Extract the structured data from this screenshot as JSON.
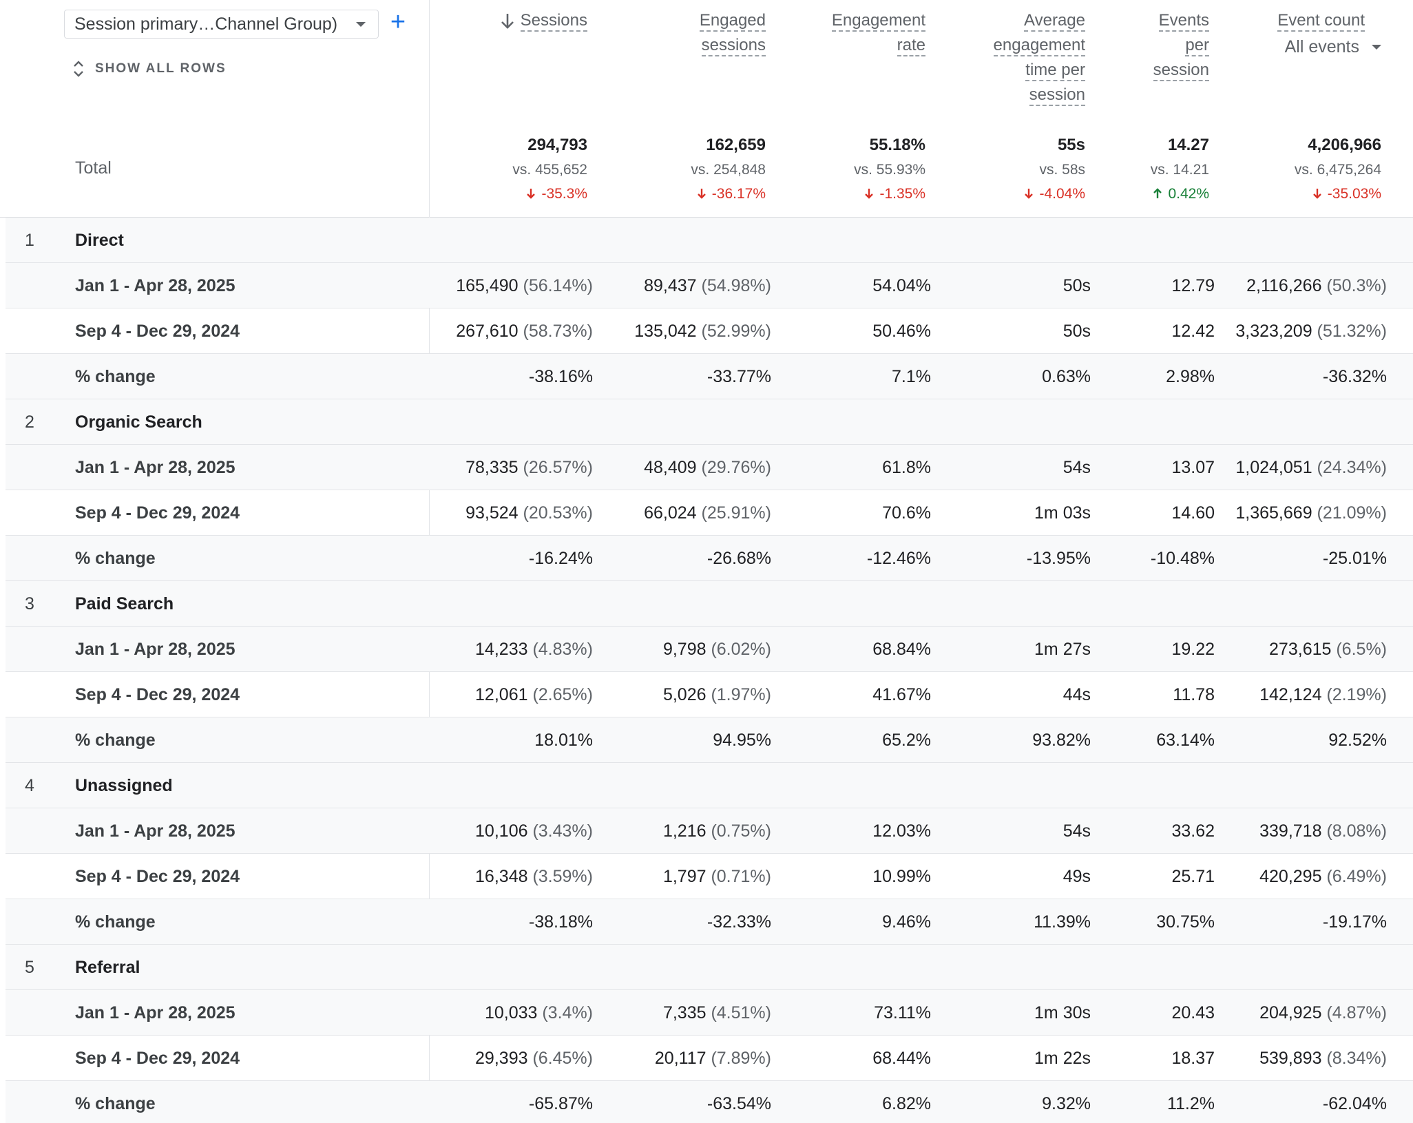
{
  "dimension_selector": {
    "value": "Session primary…Channel Group)"
  },
  "show_all_rows": "SHOW ALL ROWS",
  "columns": [
    {
      "key": "sessions",
      "lines": [
        "Sessions"
      ],
      "sorted": true
    },
    {
      "key": "engaged",
      "lines": [
        "Engaged",
        "sessions"
      ]
    },
    {
      "key": "rate",
      "lines": [
        "Engagement",
        "rate"
      ]
    },
    {
      "key": "avg",
      "lines": [
        "Average",
        "engagement",
        "time per",
        "session"
      ]
    },
    {
      "key": "eps",
      "lines": [
        "Events",
        "per",
        "session"
      ]
    },
    {
      "key": "events",
      "lines": [
        "Event count"
      ],
      "sub": "All events"
    }
  ],
  "totals": {
    "label": "Total",
    "values": [
      {
        "v": "294,793",
        "vs": "vs. 455,652",
        "chg": "-35.3%",
        "dir": "down"
      },
      {
        "v": "162,659",
        "vs": "vs. 254,848",
        "chg": "-36.17%",
        "dir": "down"
      },
      {
        "v": "55.18%",
        "vs": "vs. 55.93%",
        "chg": "-1.35%",
        "dir": "down"
      },
      {
        "v": "55s",
        "vs": "vs. 58s",
        "chg": "-4.04%",
        "dir": "down"
      },
      {
        "v": "14.27",
        "vs": "vs. 14.21",
        "chg": "0.42%",
        "dir": "up"
      },
      {
        "v": "4,206,966",
        "vs": "vs. 6,475,264",
        "chg": "-35.03%",
        "dir": "down"
      }
    ]
  },
  "groups": [
    {
      "num": "1",
      "name": "Direct",
      "rows": [
        {
          "label": "Jan 1 - Apr 28, 2025",
          "cells": [
            [
              "165,490",
              "(56.14%)"
            ],
            [
              "89,437",
              "(54.98%)"
            ],
            [
              "54.04%"
            ],
            [
              "50s"
            ],
            [
              "12.79"
            ],
            [
              "2,116,266",
              "(50.3%)"
            ]
          ]
        },
        {
          "label": "Sep 4 - Dec 29, 2024",
          "cells": [
            [
              "267,610",
              "(58.73%)"
            ],
            [
              "135,042",
              "(52.99%)"
            ],
            [
              "50.46%"
            ],
            [
              "50s"
            ],
            [
              "12.42"
            ],
            [
              "3,323,209",
              "(51.32%)"
            ]
          ]
        },
        {
          "label": "% change",
          "cells": [
            [
              "-38.16%"
            ],
            [
              "-33.77%"
            ],
            [
              "7.1%"
            ],
            [
              "0.63%"
            ],
            [
              "2.98%"
            ],
            [
              "-36.32%"
            ]
          ]
        }
      ]
    },
    {
      "num": "2",
      "name": "Organic Search",
      "rows": [
        {
          "label": "Jan 1 - Apr 28, 2025",
          "cells": [
            [
              "78,335",
              "(26.57%)"
            ],
            [
              "48,409",
              "(29.76%)"
            ],
            [
              "61.8%"
            ],
            [
              "54s"
            ],
            [
              "13.07"
            ],
            [
              "1,024,051",
              "(24.34%)"
            ]
          ]
        },
        {
          "label": "Sep 4 - Dec 29, 2024",
          "cells": [
            [
              "93,524",
              "(20.53%)"
            ],
            [
              "66,024",
              "(25.91%)"
            ],
            [
              "70.6%"
            ],
            [
              "1m 03s"
            ],
            [
              "14.60"
            ],
            [
              "1,365,669",
              "(21.09%)"
            ]
          ]
        },
        {
          "label": "% change",
          "cells": [
            [
              "-16.24%"
            ],
            [
              "-26.68%"
            ],
            [
              "-12.46%"
            ],
            [
              "-13.95%"
            ],
            [
              "-10.48%"
            ],
            [
              "-25.01%"
            ]
          ]
        }
      ]
    },
    {
      "num": "3",
      "name": "Paid Search",
      "rows": [
        {
          "label": "Jan 1 - Apr 28, 2025",
          "cells": [
            [
              "14,233",
              "(4.83%)"
            ],
            [
              "9,798",
              "(6.02%)"
            ],
            [
              "68.84%"
            ],
            [
              "1m 27s"
            ],
            [
              "19.22"
            ],
            [
              "273,615",
              "(6.5%)"
            ]
          ]
        },
        {
          "label": "Sep 4 - Dec 29, 2024",
          "cells": [
            [
              "12,061",
              "(2.65%)"
            ],
            [
              "5,026",
              "(1.97%)"
            ],
            [
              "41.67%"
            ],
            [
              "44s"
            ],
            [
              "11.78"
            ],
            [
              "142,124",
              "(2.19%)"
            ]
          ]
        },
        {
          "label": "% change",
          "cells": [
            [
              "18.01%"
            ],
            [
              "94.95%"
            ],
            [
              "65.2%"
            ],
            [
              "93.82%"
            ],
            [
              "63.14%"
            ],
            [
              "92.52%"
            ]
          ]
        }
      ]
    },
    {
      "num": "4",
      "name": "Unassigned",
      "rows": [
        {
          "label": "Jan 1 - Apr 28, 2025",
          "cells": [
            [
              "10,106",
              "(3.43%)"
            ],
            [
              "1,216",
              "(0.75%)"
            ],
            [
              "12.03%"
            ],
            [
              "54s"
            ],
            [
              "33.62"
            ],
            [
              "339,718",
              "(8.08%)"
            ]
          ]
        },
        {
          "label": "Sep 4 - Dec 29, 2024",
          "cells": [
            [
              "16,348",
              "(3.59%)"
            ],
            [
              "1,797",
              "(0.71%)"
            ],
            [
              "10.99%"
            ],
            [
              "49s"
            ],
            [
              "25.71"
            ],
            [
              "420,295",
              "(6.49%)"
            ]
          ]
        },
        {
          "label": "% change",
          "cells": [
            [
              "-38.18%"
            ],
            [
              "-32.33%"
            ],
            [
              "9.46%"
            ],
            [
              "11.39%"
            ],
            [
              "30.75%"
            ],
            [
              "-19.17%"
            ]
          ]
        }
      ]
    },
    {
      "num": "5",
      "name": "Referral",
      "rows": [
        {
          "label": "Jan 1 - Apr 28, 2025",
          "cells": [
            [
              "10,033",
              "(3.4%)"
            ],
            [
              "7,335",
              "(4.51%)"
            ],
            [
              "73.11%"
            ],
            [
              "1m 30s"
            ],
            [
              "20.43"
            ],
            [
              "204,925",
              "(4.87%)"
            ]
          ]
        },
        {
          "label": "Sep 4 - Dec 29, 2024",
          "cells": [
            [
              "29,393",
              "(6.45%)"
            ],
            [
              "20,117",
              "(7.89%)"
            ],
            [
              "68.44%"
            ],
            [
              "1m 22s"
            ],
            [
              "18.37"
            ],
            [
              "539,893",
              "(8.34%)"
            ]
          ]
        },
        {
          "label": "% change",
          "cells": [
            [
              "-65.87%"
            ],
            [
              "-63.54%"
            ],
            [
              "6.82%"
            ],
            [
              "9.32%"
            ],
            [
              "11.2%"
            ],
            [
              "-62.04%"
            ]
          ]
        }
      ]
    }
  ],
  "colors": {
    "accent": "#1a73e8",
    "down": "#d93025",
    "up": "#188038",
    "row_shade": "#f8f9fa",
    "divider": "#e3e5e8"
  }
}
